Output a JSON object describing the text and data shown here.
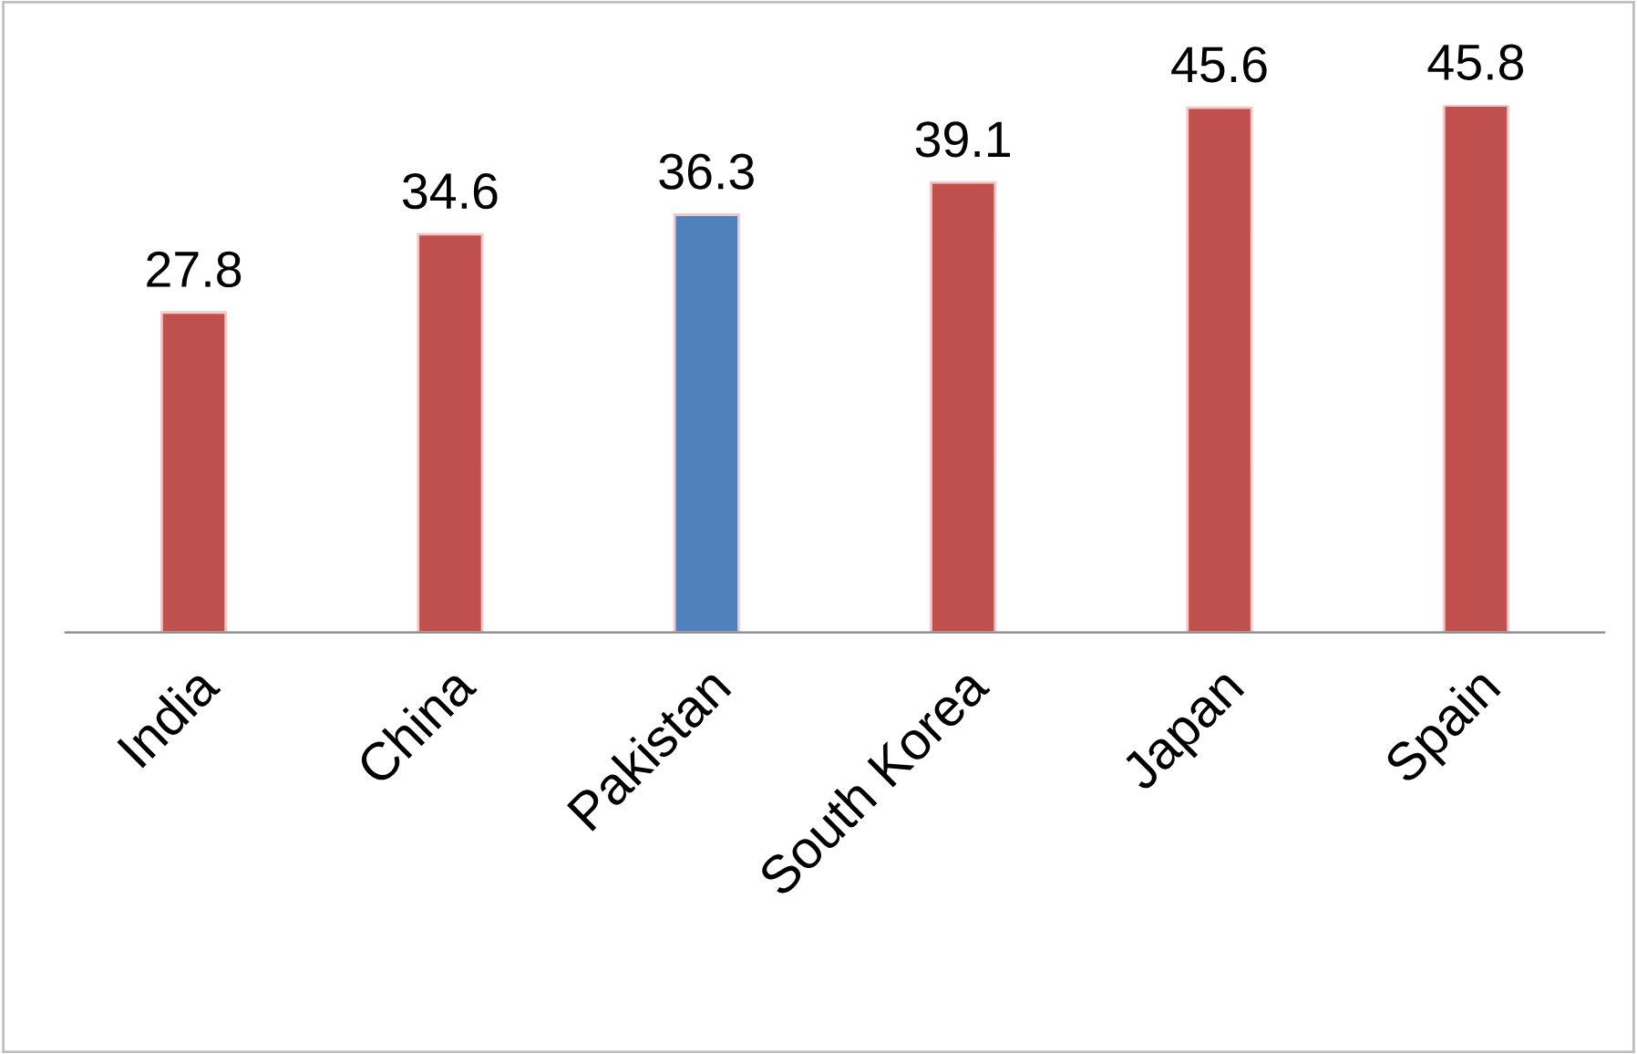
{
  "chart_data": {
    "type": "bar",
    "categories": [
      "India",
      "China",
      "Pakistan",
      "South Korea",
      "Japan",
      "Spain"
    ],
    "values": [
      27.8,
      34.6,
      36.3,
      39.1,
      45.6,
      45.8
    ],
    "colors": [
      "#c0504d",
      "#c0504d",
      "#4f81bd",
      "#c0504d",
      "#c0504d",
      "#c0504d"
    ],
    "data_labels": true,
    "grid": false,
    "legend": false
  }
}
